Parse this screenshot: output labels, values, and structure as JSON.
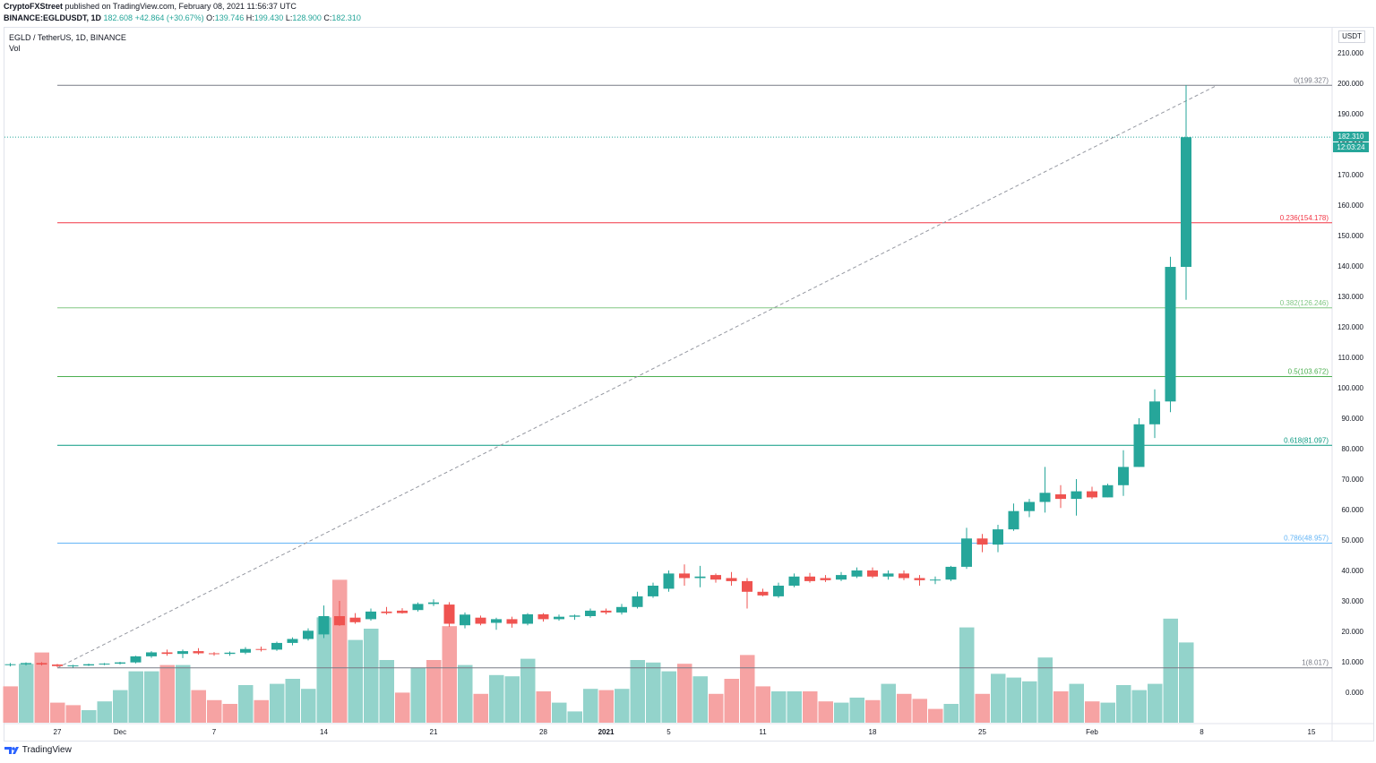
{
  "header": {
    "publisher": "CryptoFXStreet",
    "published_text": "published on TradingView.com, February 08, 2021 11:56:37 UTC",
    "symbol_line": "BINANCE:EGLDUSDT, 1D",
    "last": "182.608",
    "change": "+42.864 (+30.67%)",
    "ohlc": {
      "o_label": "O:",
      "o": "139.746",
      "h_label": "H:",
      "h": "199.430",
      "l_label": "L:",
      "l": "128.900",
      "c_label": "C:",
      "c": "182.310"
    }
  },
  "legend": {
    "title": "EGLD / TetherUS, 1D, BINANCE",
    "indicator": "Vol"
  },
  "axis": {
    "unit": "USDT"
  },
  "price_tag": {
    "price": "182.310",
    "countdown": "12:03:24"
  },
  "footer": {
    "brand": "TradingView"
  },
  "colors": {
    "up": "#26a69a",
    "down": "#ef5350",
    "vol_up": "#93d3cb",
    "vol_down": "#f6a3a3",
    "grid_line": "#787b86",
    "fib_0": "#787b86",
    "fib_236": "#f23645",
    "fib_382": "#81c784",
    "fib_5": "#4caf50",
    "fib_618": "#089981",
    "fib_786": "#64b5f6",
    "fib_1": "#787b86"
  },
  "chart_data": {
    "type": "candlestick",
    "price_axis_ticks": [
      0,
      10,
      20,
      30,
      40,
      50,
      60,
      70,
      80,
      90,
      100,
      110,
      120,
      130,
      140,
      150,
      160,
      170,
      180,
      190,
      200,
      210
    ],
    "price_tick_labels": [
      "0.000",
      "10.000",
      "20.000",
      "30.000",
      "40.000",
      "50.000",
      "60.000",
      "70.000",
      "80.000",
      "90.000",
      "100.000",
      "110.000",
      "120.000",
      "130.000",
      "140.000",
      "150.000",
      "160.000",
      "170.000",
      "180.000",
      "190.000",
      "200.000",
      "210.000"
    ],
    "time_labels": [
      {
        "label": "27",
        "index": 3
      },
      {
        "label": "Dec",
        "index": 7
      },
      {
        "label": "7",
        "index": 13
      },
      {
        "label": "14",
        "index": 20
      },
      {
        "label": "21",
        "index": 27
      },
      {
        "label": "28",
        "index": 34
      },
      {
        "label": "2021",
        "index": 38
      },
      {
        "label": "5",
        "index": 42
      },
      {
        "label": "11",
        "index": 48
      },
      {
        "label": "18",
        "index": 55
      },
      {
        "label": "25",
        "index": 62
      },
      {
        "label": "Feb",
        "index": 69
      },
      {
        "label": "8",
        "index": 76
      },
      {
        "label": "15",
        "index": 83
      }
    ],
    "fibonacci": [
      {
        "label": "0(199.327)",
        "value": 199.327,
        "color_key": "fib_0"
      },
      {
        "label": "0.236(154.178)",
        "value": 154.178,
        "color_key": "fib_236"
      },
      {
        "label": "0.382(126.246)",
        "value": 126.246,
        "color_key": "fib_382"
      },
      {
        "label": "0.5(103.672)",
        "value": 103.672,
        "color_key": "fib_5"
      },
      {
        "label": "0.618(81.097)",
        "value": 81.097,
        "color_key": "fib_618"
      },
      {
        "label": "0.786(48.957)",
        "value": 48.957,
        "color_key": "fib_786"
      },
      {
        "label": "1(8.017)",
        "value": 8.017,
        "color_key": "fib_1"
      }
    ],
    "trendline": {
      "from": [
        3,
        8.0
      ],
      "to": [
        77,
        199.4
      ]
    },
    "current_price": 182.31,
    "candles": [
      {
        "o": 9.0,
        "h": 9.6,
        "l": 8.5,
        "c": 9.2
      },
      {
        "o": 9.2,
        "h": 9.8,
        "l": 8.8,
        "c": 9.6
      },
      {
        "o": 9.6,
        "h": 9.9,
        "l": 8.8,
        "c": 9.1
      },
      {
        "o": 9.1,
        "h": 9.3,
        "l": 8.2,
        "c": 8.6
      },
      {
        "o": 8.6,
        "h": 9.0,
        "l": 8.1,
        "c": 8.8
      },
      {
        "o": 8.8,
        "h": 9.4,
        "l": 8.6,
        "c": 9.2
      },
      {
        "o": 9.2,
        "h": 9.6,
        "l": 8.9,
        "c": 9.4
      },
      {
        "o": 9.4,
        "h": 10.0,
        "l": 9.1,
        "c": 9.8
      },
      {
        "o": 9.8,
        "h": 12.0,
        "l": 9.5,
        "c": 11.8
      },
      {
        "o": 11.8,
        "h": 13.5,
        "l": 11.3,
        "c": 13.1
      },
      {
        "o": 13.1,
        "h": 14.0,
        "l": 12.0,
        "c": 12.6
      },
      {
        "o": 12.6,
        "h": 14.0,
        "l": 11.2,
        "c": 13.5
      },
      {
        "o": 13.5,
        "h": 14.5,
        "l": 12.4,
        "c": 12.8
      },
      {
        "o": 12.8,
        "h": 13.2,
        "l": 12.0,
        "c": 12.6
      },
      {
        "o": 12.6,
        "h": 13.4,
        "l": 12.0,
        "c": 13.0
      },
      {
        "o": 13.0,
        "h": 14.8,
        "l": 12.5,
        "c": 14.2
      },
      {
        "o": 14.2,
        "h": 15.0,
        "l": 13.4,
        "c": 14.0
      },
      {
        "o": 14.0,
        "h": 16.6,
        "l": 13.6,
        "c": 16.2
      },
      {
        "o": 16.2,
        "h": 18.0,
        "l": 15.4,
        "c": 17.5
      },
      {
        "o": 17.5,
        "h": 21.0,
        "l": 17.0,
        "c": 20.2
      },
      {
        "o": 19.0,
        "h": 28.5,
        "l": 17.8,
        "c": 25.0
      },
      {
        "o": 25.0,
        "h": 30.0,
        "l": 21.8,
        "c": 22.0
      },
      {
        "o": 24.5,
        "h": 26.0,
        "l": 22.5,
        "c": 23.0
      },
      {
        "o": 24.0,
        "h": 27.5,
        "l": 23.5,
        "c": 26.5
      },
      {
        "o": 26.5,
        "h": 28.0,
        "l": 25.5,
        "c": 26.0
      },
      {
        "o": 26.8,
        "h": 27.6,
        "l": 25.8,
        "c": 26.0
      },
      {
        "o": 27.0,
        "h": 29.5,
        "l": 26.5,
        "c": 29.0
      },
      {
        "o": 29.0,
        "h": 30.5,
        "l": 28.3,
        "c": 29.5
      },
      {
        "o": 28.8,
        "h": 29.6,
        "l": 21.5,
        "c": 22.5
      },
      {
        "o": 22.0,
        "h": 26.2,
        "l": 21.0,
        "c": 25.5
      },
      {
        "o": 24.5,
        "h": 25.2,
        "l": 22.0,
        "c": 22.5
      },
      {
        "o": 22.8,
        "h": 24.5,
        "l": 20.5,
        "c": 24.0
      },
      {
        "o": 24.0,
        "h": 24.8,
        "l": 21.2,
        "c": 22.5
      },
      {
        "o": 22.5,
        "h": 26.0,
        "l": 22.0,
        "c": 25.6
      },
      {
        "o": 25.6,
        "h": 26.0,
        "l": 23.2,
        "c": 24.0
      },
      {
        "o": 24.0,
        "h": 25.5,
        "l": 23.5,
        "c": 24.8
      },
      {
        "o": 24.8,
        "h": 25.5,
        "l": 23.8,
        "c": 25.2
      },
      {
        "o": 25.0,
        "h": 27.5,
        "l": 24.5,
        "c": 26.8
      },
      {
        "o": 26.8,
        "h": 27.5,
        "l": 25.6,
        "c": 26.2
      },
      {
        "o": 26.2,
        "h": 29.0,
        "l": 25.5,
        "c": 28.0
      },
      {
        "o": 28.0,
        "h": 33.0,
        "l": 27.5,
        "c": 31.5
      },
      {
        "o": 31.5,
        "h": 36.0,
        "l": 31.0,
        "c": 35.0
      },
      {
        "o": 34.0,
        "h": 40.0,
        "l": 33.0,
        "c": 39.0
      },
      {
        "o": 39.0,
        "h": 42.0,
        "l": 35.0,
        "c": 37.5
      },
      {
        "o": 37.5,
        "h": 41.5,
        "l": 34.5,
        "c": 38.0
      },
      {
        "o": 38.5,
        "h": 39.0,
        "l": 36.0,
        "c": 37.0
      },
      {
        "o": 37.5,
        "h": 39.5,
        "l": 35.0,
        "c": 36.5
      },
      {
        "o": 36.5,
        "h": 37.5,
        "l": 27.5,
        "c": 33.0
      },
      {
        "o": 33.0,
        "h": 34.0,
        "l": 31.5,
        "c": 31.8
      },
      {
        "o": 31.5,
        "h": 36.0,
        "l": 31.0,
        "c": 35.0
      },
      {
        "o": 35.0,
        "h": 39.0,
        "l": 34.5,
        "c": 38.0
      },
      {
        "o": 38.0,
        "h": 39.2,
        "l": 36.0,
        "c": 36.5
      },
      {
        "o": 37.5,
        "h": 38.5,
        "l": 36.2,
        "c": 36.8
      },
      {
        "o": 37.0,
        "h": 39.5,
        "l": 36.5,
        "c": 38.5
      },
      {
        "o": 38.0,
        "h": 41.0,
        "l": 37.5,
        "c": 40.0
      },
      {
        "o": 40.0,
        "h": 41.0,
        "l": 37.5,
        "c": 38.0
      },
      {
        "o": 38.0,
        "h": 40.0,
        "l": 37.0,
        "c": 39.0
      },
      {
        "o": 39.0,
        "h": 40.0,
        "l": 36.8,
        "c": 37.5
      },
      {
        "o": 37.5,
        "h": 38.5,
        "l": 35.0,
        "c": 36.8
      },
      {
        "o": 36.8,
        "h": 38.0,
        "l": 35.5,
        "c": 37.0
      },
      {
        "o": 37.0,
        "h": 41.5,
        "l": 36.5,
        "c": 41.2
      },
      {
        "o": 41.2,
        "h": 54.0,
        "l": 40.5,
        "c": 50.5
      },
      {
        "o": 50.5,
        "h": 52.0,
        "l": 46.0,
        "c": 48.5
      },
      {
        "o": 48.5,
        "h": 55.0,
        "l": 46.0,
        "c": 53.5
      },
      {
        "o": 53.5,
        "h": 62.0,
        "l": 53.0,
        "c": 59.5
      },
      {
        "o": 59.5,
        "h": 63.5,
        "l": 57.5,
        "c": 62.5
      },
      {
        "o": 62.5,
        "h": 74.0,
        "l": 59.0,
        "c": 65.5
      },
      {
        "o": 65.0,
        "h": 68.0,
        "l": 60.5,
        "c": 63.5
      },
      {
        "o": 63.5,
        "h": 70.0,
        "l": 58.0,
        "c": 66.0
      },
      {
        "o": 66.0,
        "h": 67.5,
        "l": 63.5,
        "c": 64.0
      },
      {
        "o": 64.0,
        "h": 68.5,
        "l": 64.0,
        "c": 68.0
      },
      {
        "o": 68.0,
        "h": 79.5,
        "l": 64.5,
        "c": 74.0
      },
      {
        "o": 74.0,
        "h": 90.0,
        "l": 74.0,
        "c": 88.0
      },
      {
        "o": 88.0,
        "h": 99.5,
        "l": 83.5,
        "c": 95.5
      },
      {
        "o": 95.5,
        "h": 143.0,
        "l": 92.0,
        "c": 139.7
      },
      {
        "o": 139.7,
        "h": 199.4,
        "l": 128.9,
        "c": 182.3
      }
    ],
    "volume": [
      {
        "v": 14.5,
        "up": false
      },
      {
        "v": 23.5,
        "up": true
      },
      {
        "v": 28.0,
        "up": false
      },
      {
        "v": 8.0,
        "up": false
      },
      {
        "v": 7.0,
        "up": false
      },
      {
        "v": 5.0,
        "up": true
      },
      {
        "v": 8.5,
        "up": true
      },
      {
        "v": 13.0,
        "up": true
      },
      {
        "v": 20.5,
        "up": true
      },
      {
        "v": 20.5,
        "up": true
      },
      {
        "v": 23.0,
        "up": false
      },
      {
        "v": 23.0,
        "up": true
      },
      {
        "v": 13.0,
        "up": false
      },
      {
        "v": 9.0,
        "up": false
      },
      {
        "v": 7.5,
        "up": false
      },
      {
        "v": 15.0,
        "up": true
      },
      {
        "v": 9.0,
        "up": false
      },
      {
        "v": 15.5,
        "up": true
      },
      {
        "v": 17.5,
        "up": true
      },
      {
        "v": 13.5,
        "up": true
      },
      {
        "v": 42.0,
        "up": true
      },
      {
        "v": 57.0,
        "up": false
      },
      {
        "v": 33.0,
        "up": true
      },
      {
        "v": 37.5,
        "up": true
      },
      {
        "v": 25.0,
        "up": true
      },
      {
        "v": 12.0,
        "up": false
      },
      {
        "v": 22.0,
        "up": true
      },
      {
        "v": 25.0,
        "up": false
      },
      {
        "v": 38.5,
        "up": false
      },
      {
        "v": 23.0,
        "up": true
      },
      {
        "v": 11.5,
        "up": false
      },
      {
        "v": 19.0,
        "up": true
      },
      {
        "v": 18.5,
        "up": true
      },
      {
        "v": 25.5,
        "up": true
      },
      {
        "v": 12.5,
        "up": false
      },
      {
        "v": 8.0,
        "up": true
      },
      {
        "v": 4.5,
        "up": true
      },
      {
        "v": 13.5,
        "up": true
      },
      {
        "v": 13.0,
        "up": false
      },
      {
        "v": 13.5,
        "up": true
      },
      {
        "v": 25.0,
        "up": true
      },
      {
        "v": 24.0,
        "up": true
      },
      {
        "v": 20.5,
        "up": true
      },
      {
        "v": 23.5,
        "up": false
      },
      {
        "v": 18.5,
        "up": true
      },
      {
        "v": 11.5,
        "up": false
      },
      {
        "v": 17.5,
        "up": false
      },
      {
        "v": 27.0,
        "up": false
      },
      {
        "v": 14.5,
        "up": false
      },
      {
        "v": 12.5,
        "up": true
      },
      {
        "v": 12.5,
        "up": true
      },
      {
        "v": 12.5,
        "up": false
      },
      {
        "v": 8.5,
        "up": false
      },
      {
        "v": 8.0,
        "up": true
      },
      {
        "v": 10.0,
        "up": true
      },
      {
        "v": 9.0,
        "up": false
      },
      {
        "v": 15.5,
        "up": true
      },
      {
        "v": 11.5,
        "up": false
      },
      {
        "v": 9.5,
        "up": false
      },
      {
        "v": 5.5,
        "up": false
      },
      {
        "v": 7.5,
        "up": true
      },
      {
        "v": 38.0,
        "up": true
      },
      {
        "v": 11.5,
        "up": false
      },
      {
        "v": 19.5,
        "up": true
      },
      {
        "v": 18.0,
        "up": true
      },
      {
        "v": 16.5,
        "up": true
      },
      {
        "v": 26.0,
        "up": true
      },
      {
        "v": 12.5,
        "up": false
      },
      {
        "v": 15.5,
        "up": true
      },
      {
        "v": 8.5,
        "up": false
      },
      {
        "v": 8.0,
        "up": true
      },
      {
        "v": 15.0,
        "up": true
      },
      {
        "v": 13.0,
        "up": true
      },
      {
        "v": 15.5,
        "up": true
      },
      {
        "v": 41.5,
        "up": true
      },
      {
        "v": 32.0,
        "up": true
      }
    ]
  }
}
